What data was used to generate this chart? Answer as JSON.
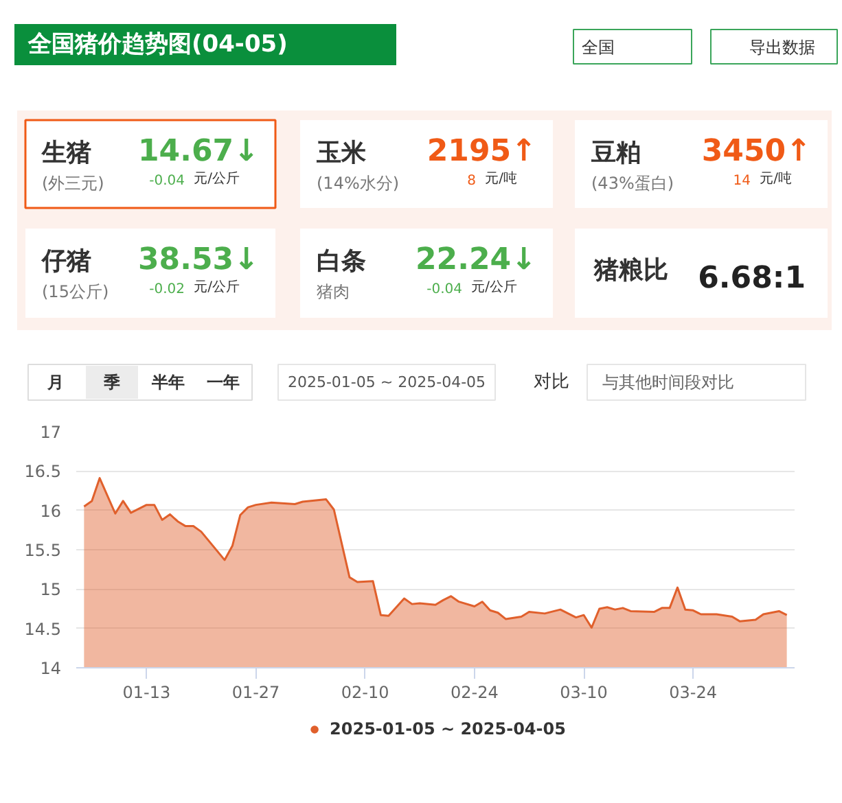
{
  "chart_data": [
    {
      "type": "other",
      "title": "全国猪价趋势图(04-05)",
      "annotations": [
        "全国",
        "导出数据",
        "生猪",
        "(外三元)",
        "14.67↓",
        "-0.04",
        "元/公斤",
        "玉米",
        "(14%水分)",
        "2195↑",
        "8",
        "元/吨",
        "豆粕",
        "(43%蛋白)",
        "3450↑",
        "14",
        "元/吨",
        "仔猪",
        "(15公斤)",
        "38.53↓",
        "-0.02",
        "元/公斤",
        "白条",
        "猪肉",
        "22.24↓",
        "-0.04",
        "元/公斤",
        "猪粮比",
        "6.68:1",
        "月",
        "季",
        "半年",
        "一年",
        "2025-01-05 ~ 2025-04-05",
        "对比",
        "与其他时间段对比"
      ],
      "colors": [
        "#4cae4c",
        "#f05a16",
        "#f05a16",
        "#4cae4c",
        "#4cae4c",
        "#222222"
      ]
    },
    {
      "type": "area",
      "legend": "bottom",
      "grid": "y",
      "x": [
        "2025-01-05",
        "2025-01-06",
        "2025-01-07",
        "2025-01-09",
        "2025-01-10",
        "2025-01-11",
        "2025-01-13",
        "2025-01-14",
        "2025-01-15",
        "2025-01-16",
        "2025-01-17",
        "2025-01-18",
        "2025-01-19",
        "2025-01-20",
        "2025-01-23",
        "2025-01-24",
        "2025-01-25",
        "2025-01-26",
        "2025-01-27",
        "2025-01-29",
        "2025-02-01",
        "2025-02-02",
        "2025-02-05",
        "2025-02-06",
        "2025-02-07",
        "2025-02-08",
        "2025-02-09",
        "2025-02-11",
        "2025-02-12",
        "2025-02-13",
        "2025-02-15",
        "2025-02-16",
        "2025-02-17",
        "2025-02-19",
        "2025-02-20",
        "2025-02-21",
        "2025-02-22",
        "2025-02-24",
        "2025-02-25",
        "2025-02-26",
        "2025-02-27",
        "2025-02-28",
        "2025-03-02",
        "2025-03-03",
        "2025-03-05",
        "2025-03-07",
        "2025-03-09",
        "2025-03-10",
        "2025-03-11",
        "2025-03-12",
        "2025-03-13",
        "2025-03-14",
        "2025-03-15",
        "2025-03-16",
        "2025-03-19",
        "2025-03-20",
        "2025-03-21",
        "2025-03-22",
        "2025-03-23",
        "2025-03-24",
        "2025-03-25",
        "2025-03-27",
        "2025-03-29",
        "2025-03-30",
        "2025-04-01",
        "2025-04-02",
        "2025-04-04",
        "2025-04-05"
      ],
      "series": [
        {
          "name": "2025-01-05 ~ 2025-04-05",
          "color": "#e0602c",
          "values": [
            16.05,
            16.12,
            16.41,
            15.96,
            16.12,
            15.97,
            16.07,
            16.07,
            15.88,
            15.95,
            15.86,
            15.8,
            15.8,
            15.73,
            15.37,
            15.55,
            15.94,
            16.04,
            16.07,
            16.1,
            16.08,
            16.11,
            16.14,
            16.01,
            15.58,
            15.15,
            15.09,
            15.1,
            14.67,
            14.66,
            14.88,
            14.81,
            14.82,
            14.8,
            14.86,
            14.91,
            14.84,
            14.78,
            14.84,
            14.73,
            14.7,
            14.62,
            14.65,
            14.71,
            14.69,
            14.74,
            14.64,
            14.67,
            14.51,
            14.75,
            14.77,
            14.74,
            14.76,
            14.72,
            14.71,
            14.76,
            14.76,
            15.02,
            14.74,
            14.73,
            14.68,
            14.68,
            14.65,
            14.59,
            14.61,
            14.68,
            14.72,
            14.67
          ]
        }
      ],
      "xlim": [
        "2025-01-04",
        "2025-04-06"
      ],
      "xticks": [
        {
          "value": "2025-01-13",
          "label": "01-13"
        },
        {
          "value": "2025-01-27",
          "label": "01-27"
        },
        {
          "value": "2025-02-10",
          "label": "02-10"
        },
        {
          "value": "2025-02-24",
          "label": "02-24"
        },
        {
          "value": "2025-03-10",
          "label": "03-10"
        },
        {
          "value": "2025-03-24",
          "label": "03-24"
        }
      ],
      "ylim": [
        14,
        17
      ],
      "yticks": [
        14,
        14.5,
        15,
        15.5,
        16,
        16.5,
        17
      ]
    }
  ]
}
